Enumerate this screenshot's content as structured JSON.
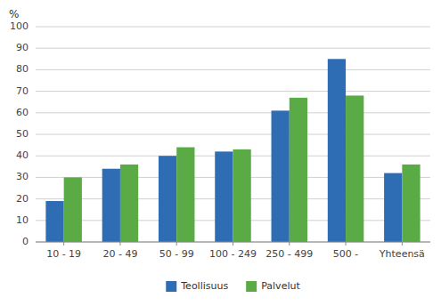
{
  "chart_data": {
    "type": "bar",
    "y_label": "%",
    "categories": [
      "10 - 19",
      "20 - 49",
      "50 - 99",
      "100 - 249",
      "250 - 499",
      "500 -",
      "Yhteensä"
    ],
    "series": [
      {
        "name": "Teollisuus",
        "color": "#2e6db4",
        "values": [
          19,
          34,
          40,
          42,
          61,
          85,
          32
        ]
      },
      {
        "name": "Palvelut",
        "color": "#5aab45",
        "values": [
          30,
          36,
          44,
          43,
          67,
          68,
          36
        ]
      }
    ],
    "ylim": [
      0,
      100
    ],
    "yticks": [
      0,
      10,
      20,
      30,
      40,
      50,
      60,
      70,
      80,
      90,
      100
    ],
    "grid": true,
    "legend": "bottom"
  }
}
